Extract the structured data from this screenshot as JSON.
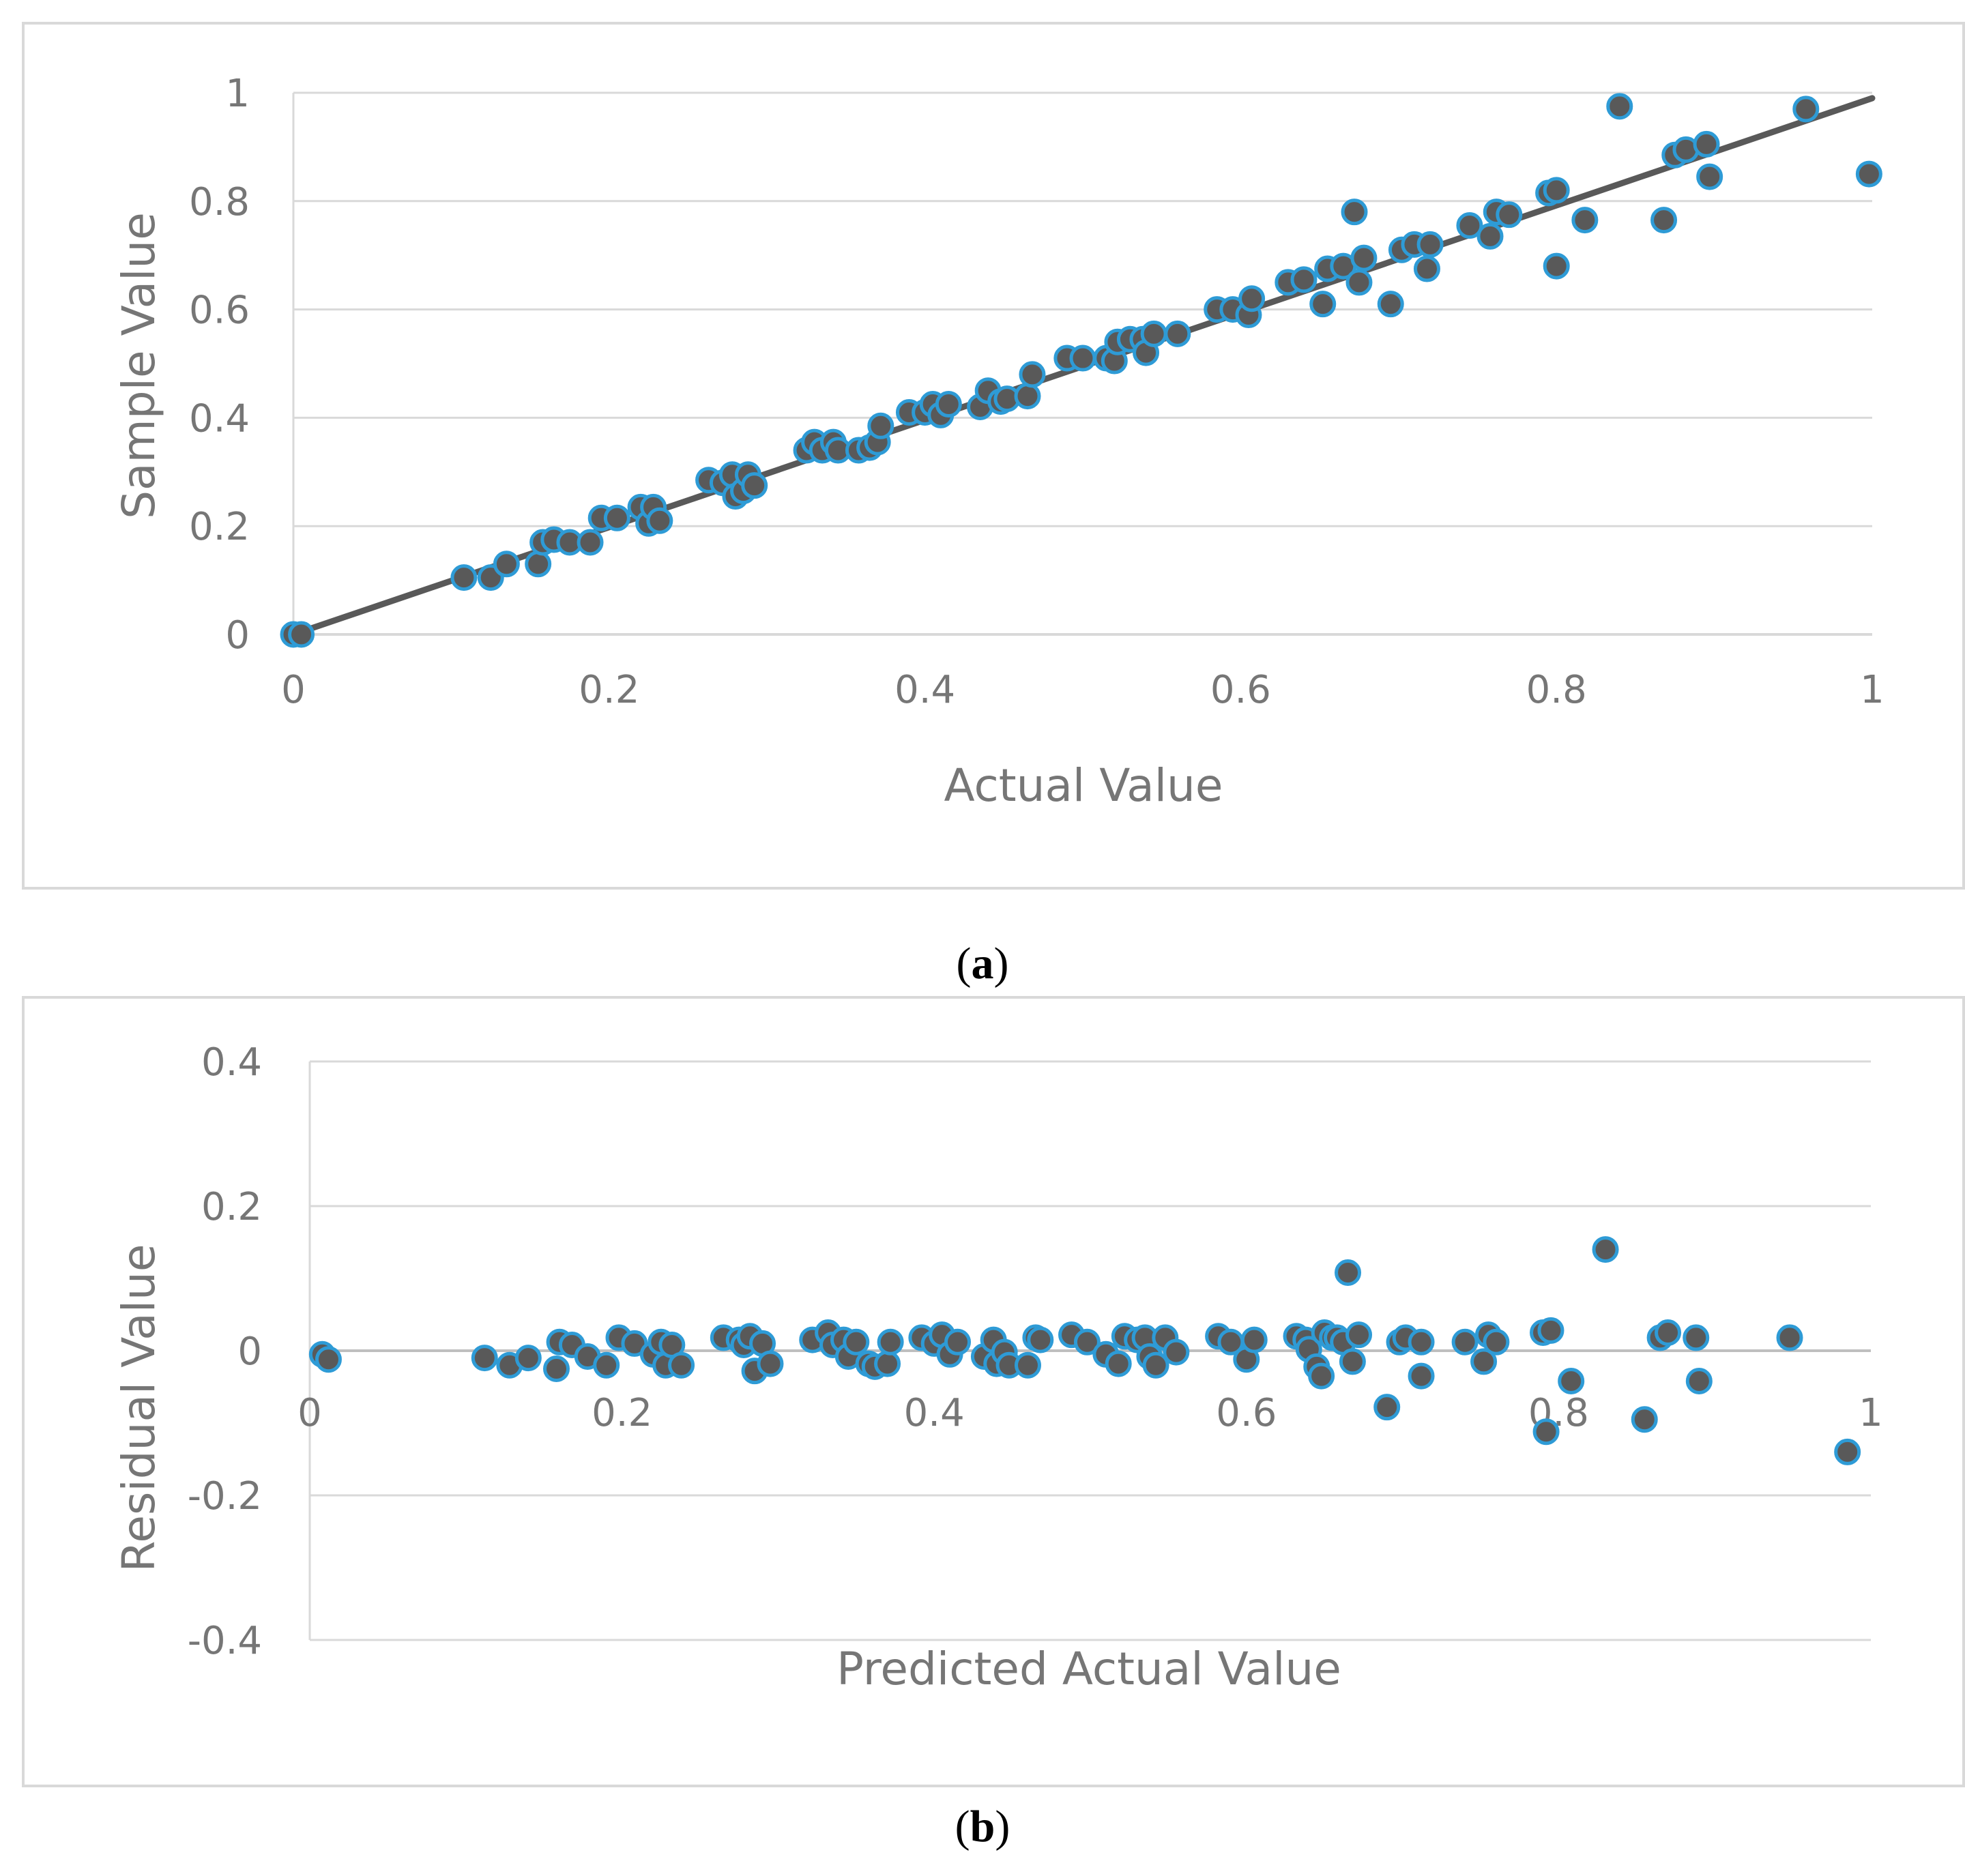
{
  "chart_data": [
    {
      "id": "a",
      "type": "scatter",
      "caption_letter": "a",
      "xlabel": "Actual Value",
      "ylabel": "Sample Value",
      "xlim": [
        0,
        1
      ],
      "ylim": [
        0,
        1
      ],
      "xticks": [
        0,
        0.2,
        0.4,
        0.6,
        0.8,
        1
      ],
      "yticks": [
        0,
        0.2,
        0.4,
        0.6,
        0.8,
        1
      ],
      "xtick_labels": [
        "0",
        "0.2",
        "0.4",
        "0.6",
        "0.8",
        "1"
      ],
      "ytick_labels": [
        "0",
        "0.2",
        "0.4",
        "0.6",
        "0.8",
        "1"
      ],
      "grid": "horizontal",
      "trendline": {
        "x": [
          0,
          1
        ],
        "y": [
          0,
          0.99
        ]
      },
      "marker_fill": "#595959",
      "marker_edge": "#2e9bd6",
      "line_color": "#595959",
      "points": [
        [
          0.0,
          0.0
        ],
        [
          0.005,
          0.0
        ],
        [
          0.108,
          0.105
        ],
        [
          0.125,
          0.105
        ],
        [
          0.135,
          0.13
        ],
        [
          0.155,
          0.13
        ],
        [
          0.158,
          0.17
        ],
        [
          0.165,
          0.175
        ],
        [
          0.175,
          0.17
        ],
        [
          0.188,
          0.17
        ],
        [
          0.195,
          0.215
        ],
        [
          0.205,
          0.215
        ],
        [
          0.22,
          0.235
        ],
        [
          0.225,
          0.205
        ],
        [
          0.228,
          0.235
        ],
        [
          0.232,
          0.21
        ],
        [
          0.263,
          0.285
        ],
        [
          0.272,
          0.28
        ],
        [
          0.278,
          0.295
        ],
        [
          0.28,
          0.255
        ],
        [
          0.285,
          0.265
        ],
        [
          0.288,
          0.295
        ],
        [
          0.292,
          0.275
        ],
        [
          0.325,
          0.34
        ],
        [
          0.33,
          0.355
        ],
        [
          0.335,
          0.34
        ],
        [
          0.342,
          0.355
        ],
        [
          0.345,
          0.34
        ],
        [
          0.358,
          0.34
        ],
        [
          0.365,
          0.345
        ],
        [
          0.37,
          0.355
        ],
        [
          0.372,
          0.385
        ],
        [
          0.39,
          0.41
        ],
        [
          0.4,
          0.41
        ],
        [
          0.405,
          0.425
        ],
        [
          0.41,
          0.405
        ],
        [
          0.415,
          0.425
        ],
        [
          0.435,
          0.42
        ],
        [
          0.44,
          0.45
        ],
        [
          0.448,
          0.43
        ],
        [
          0.452,
          0.435
        ],
        [
          0.465,
          0.44
        ],
        [
          0.468,
          0.48
        ],
        [
          0.49,
          0.51
        ],
        [
          0.5,
          0.51
        ],
        [
          0.515,
          0.51
        ],
        [
          0.52,
          0.505
        ],
        [
          0.522,
          0.54
        ],
        [
          0.53,
          0.545
        ],
        [
          0.538,
          0.545
        ],
        [
          0.54,
          0.52
        ],
        [
          0.545,
          0.555
        ],
        [
          0.56,
          0.555
        ],
        [
          0.585,
          0.6
        ],
        [
          0.595,
          0.6
        ],
        [
          0.605,
          0.59
        ],
        [
          0.607,
          0.62
        ],
        [
          0.63,
          0.65
        ],
        [
          0.64,
          0.655
        ],
        [
          0.652,
          0.61
        ],
        [
          0.655,
          0.675
        ],
        [
          0.665,
          0.68
        ],
        [
          0.672,
          0.78
        ],
        [
          0.675,
          0.65
        ],
        [
          0.678,
          0.695
        ],
        [
          0.695,
          0.61
        ],
        [
          0.702,
          0.71
        ],
        [
          0.71,
          0.72
        ],
        [
          0.718,
          0.675
        ],
        [
          0.72,
          0.72
        ],
        [
          0.745,
          0.755
        ],
        [
          0.758,
          0.735
        ],
        [
          0.762,
          0.78
        ],
        [
          0.77,
          0.775
        ],
        [
          0.795,
          0.815
        ],
        [
          0.8,
          0.68
        ],
        [
          0.8,
          0.82
        ],
        [
          0.818,
          0.765
        ],
        [
          0.84,
          0.975
        ],
        [
          0.868,
          0.765
        ],
        [
          0.875,
          0.885
        ],
        [
          0.882,
          0.895
        ],
        [
          0.895,
          0.905
        ],
        [
          0.897,
          0.845
        ],
        [
          0.958,
          0.97
        ],
        [
          0.998,
          0.85
        ]
      ]
    },
    {
      "id": "b",
      "type": "scatter",
      "caption_letter": "b",
      "xlabel": "Predicted Actual Value",
      "ylabel": "Residual Value",
      "xlim": [
        0,
        1
      ],
      "ylim": [
        -0.4,
        0.4
      ],
      "xticks": [
        0,
        0.2,
        0.4,
        0.6,
        0.8,
        1
      ],
      "yticks": [
        -0.4,
        -0.2,
        0,
        0.2,
        0.4
      ],
      "xtick_labels": [
        "0",
        "0.2",
        "0.4",
        "0.6",
        "0.8",
        "1"
      ],
      "ytick_labels": [
        "-0.4",
        "-0.2",
        "0",
        "0.2",
        "0.4"
      ],
      "grid": "horizontal",
      "marker_fill": "#595959",
      "marker_edge": "#2e9bd6",
      "points": [
        [
          0.008,
          -0.005
        ],
        [
          0.012,
          -0.012
        ],
        [
          0.112,
          -0.01
        ],
        [
          0.128,
          -0.02
        ],
        [
          0.14,
          -0.01
        ],
        [
          0.158,
          -0.025
        ],
        [
          0.16,
          0.012
        ],
        [
          0.168,
          0.008
        ],
        [
          0.178,
          -0.008
        ],
        [
          0.19,
          -0.02
        ],
        [
          0.198,
          0.018
        ],
        [
          0.208,
          0.01
        ],
        [
          0.22,
          -0.005
        ],
        [
          0.225,
          0.012
        ],
        [
          0.228,
          -0.02
        ],
        [
          0.232,
          0.008
        ],
        [
          0.238,
          -0.02
        ],
        [
          0.265,
          0.018
        ],
        [
          0.275,
          0.015
        ],
        [
          0.278,
          0.008
        ],
        [
          0.282,
          0.02
        ],
        [
          0.285,
          -0.028
        ],
        [
          0.29,
          0.01
        ],
        [
          0.295,
          -0.018
        ],
        [
          0.322,
          0.015
        ],
        [
          0.332,
          0.025
        ],
        [
          0.335,
          0.008
        ],
        [
          0.342,
          0.015
        ],
        [
          0.345,
          -0.008
        ],
        [
          0.35,
          0.012
        ],
        [
          0.358,
          -0.018
        ],
        [
          0.362,
          -0.022
        ],
        [
          0.37,
          -0.018
        ],
        [
          0.372,
          0.012
        ],
        [
          0.392,
          0.018
        ],
        [
          0.4,
          0.01
        ],
        [
          0.405,
          0.022
        ],
        [
          0.41,
          -0.005
        ],
        [
          0.415,
          0.012
        ],
        [
          0.432,
          -0.008
        ],
        [
          0.438,
          0.015
        ],
        [
          0.44,
          -0.018
        ],
        [
          0.445,
          -0.002
        ],
        [
          0.448,
          -0.02
        ],
        [
          0.46,
          -0.02
        ],
        [
          0.465,
          0.018
        ],
        [
          0.468,
          0.015
        ],
        [
          0.488,
          0.022
        ],
        [
          0.498,
          0.012
        ],
        [
          0.51,
          -0.005
        ],
        [
          0.518,
          -0.018
        ],
        [
          0.522,
          0.02
        ],
        [
          0.53,
          0.015
        ],
        [
          0.535,
          0.018
        ],
        [
          0.538,
          -0.008
        ],
        [
          0.542,
          -0.02
        ],
        [
          0.548,
          0.018
        ],
        [
          0.555,
          -0.002
        ],
        [
          0.582,
          0.02
        ],
        [
          0.59,
          0.012
        ],
        [
          0.6,
          -0.012
        ],
        [
          0.605,
          0.015
        ],
        [
          0.632,
          0.02
        ],
        [
          0.638,
          0.015
        ],
        [
          0.64,
          0.002
        ],
        [
          0.645,
          -0.022
        ],
        [
          0.648,
          -0.035
        ],
        [
          0.65,
          0.025
        ],
        [
          0.655,
          0.018
        ],
        [
          0.658,
          0.018
        ],
        [
          0.662,
          0.012
        ],
        [
          0.665,
          0.108
        ],
        [
          0.668,
          -0.015
        ],
        [
          0.672,
          0.022
        ],
        [
          0.69,
          -0.078
        ],
        [
          0.698,
          0.012
        ],
        [
          0.702,
          0.018
        ],
        [
          0.712,
          0.012
        ],
        [
          0.712,
          -0.035
        ],
        [
          0.74,
          0.012
        ],
        [
          0.752,
          -0.015
        ],
        [
          0.755,
          0.022
        ],
        [
          0.76,
          0.012
        ],
        [
          0.79,
          0.025
        ],
        [
          0.792,
          -0.112
        ],
        [
          0.795,
          0.028
        ],
        [
          0.808,
          -0.042
        ],
        [
          0.83,
          0.14
        ],
        [
          0.855,
          -0.095
        ],
        [
          0.865,
          0.018
        ],
        [
          0.87,
          0.025
        ],
        [
          0.888,
          0.018
        ],
        [
          0.89,
          -0.042
        ],
        [
          0.948,
          0.018
        ],
        [
          0.985,
          -0.14
        ]
      ]
    }
  ]
}
